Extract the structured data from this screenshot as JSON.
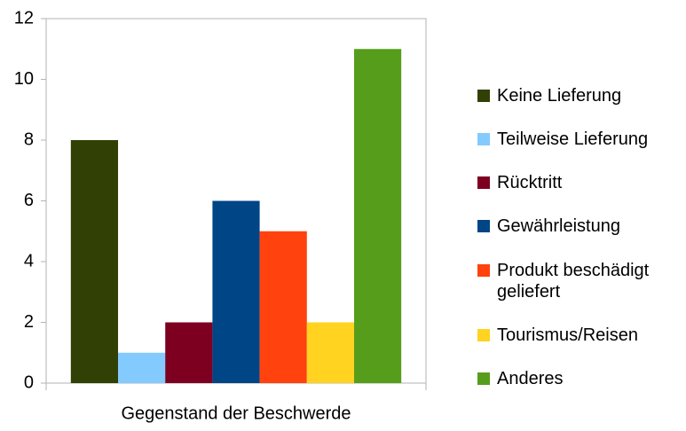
{
  "chart_data": {
    "type": "bar",
    "categories": [
      "Gegenstand der Beschwerde"
    ],
    "series": [
      {
        "name": "Keine Lieferung",
        "color": "#314004",
        "values": [
          8
        ]
      },
      {
        "name": "Teilweise Lieferung",
        "color": "#83caff",
        "values": [
          1
        ]
      },
      {
        "name": "Rücktritt",
        "color": "#7e0021",
        "values": [
          2
        ]
      },
      {
        "name": "Gewährleistung",
        "color": "#004586",
        "values": [
          6
        ]
      },
      {
        "name": "Produkt beschädigt geliefert",
        "color": "#ff420e",
        "values": [
          5
        ]
      },
      {
        "name": "Tourismus/Reisen",
        "color": "#ffd320",
        "values": [
          2
        ]
      },
      {
        "name": "Anderes",
        "color": "#579d1c",
        "values": [
          11
        ]
      }
    ],
    "ylim": [
      0,
      12
    ],
    "yticks": [
      0,
      2,
      4,
      6,
      8,
      10,
      12
    ],
    "legend": "right"
  }
}
